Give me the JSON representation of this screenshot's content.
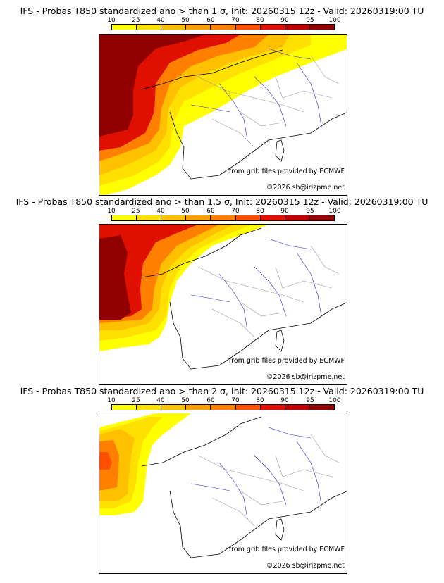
{
  "colorbar": {
    "ticks": [
      "10",
      "25",
      "40",
      "50",
      "60",
      "70",
      "80",
      "90",
      "95",
      "100"
    ],
    "colors": [
      "#ffff00",
      "#ffe000",
      "#ffc000",
      "#ffa000",
      "#ff8000",
      "#ff5000",
      "#e01000",
      "#c00000",
      "#900000"
    ]
  },
  "panels": [
    {
      "title": "IFS - Probas T850  standardized ano > than 1 σ, Init: 20260315 12z - Valid: 20260319:00 TU",
      "source": "from grib files provided by ECMWF",
      "copyright": "©2026 sb@irizpme.net"
    },
    {
      "title": "IFS - Probas T850  standardized ano > than 1.5 σ, Init: 20260315 12z - Valid: 20260319:00 TU",
      "source": "from grib files provided by ECMWF",
      "copyright": "©2026 sb@irizpme.net"
    },
    {
      "title": "IFS - Probas T850  standardized ano > than 2 σ, Init: 20260315 12z - Valid: 20260319:00 TU",
      "source": "from grib files provided by ECMWF",
      "copyright": "©2026 sb@irizpme.net"
    }
  ]
}
